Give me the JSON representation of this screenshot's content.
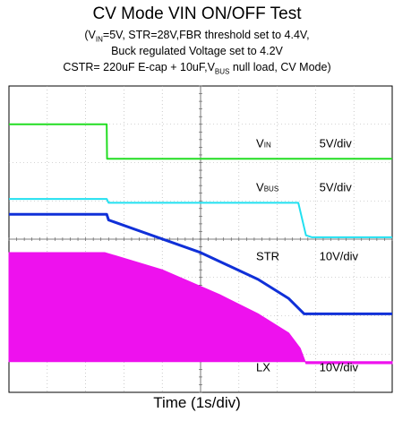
{
  "header": {
    "title": "CV Mode VIN ON/OFF Test",
    "line1_a": "(V",
    "line1_sub": "IN",
    "line1_b": "=5V, STR=28V,FBR threshold set to 4.4V,",
    "line2": "Buck regulated Voltage set to 4.2V",
    "line3_a": "CSTR= 220uF E-cap + 10uF,V",
    "line3_sub": "BUS",
    "line3_b": " null load,  CV Mode)"
  },
  "xlabel": "Time (1s/div)",
  "chart_data": {
    "type": "line",
    "title": "CV Mode VIN ON/OFF Test",
    "xlabel": "Time (1s/div)",
    "x_unit": "s",
    "xlim": [
      0,
      10
    ],
    "y_unit": "div",
    "ylim": [
      -4,
      4
    ],
    "grid": true,
    "series": [
      {
        "name": "VIN",
        "label_main": "V",
        "label_sub": "IN",
        "scale": "5V/div",
        "color": "#22dd22",
        "x": [
          0,
          2.55,
          2.56,
          10
        ],
        "y": [
          3.0,
          3.0,
          2.1,
          2.1
        ]
      },
      {
        "name": "VBUS",
        "label_main": "V",
        "label_sub": "BUS",
        "scale": "5V/div",
        "color": "#22e0f0",
        "x": [
          0,
          2.55,
          2.6,
          7.55,
          7.75,
          7.9,
          10
        ],
        "y": [
          1.05,
          1.05,
          0.95,
          0.95,
          0.1,
          0.05,
          0.05
        ]
      },
      {
        "name": "STR",
        "label_main": "STR",
        "scale": "10V/div",
        "color": "#1030d8",
        "x": [
          0,
          2.55,
          2.6,
          5,
          6.5,
          7.3,
          7.65,
          7.7,
          10
        ],
        "y": [
          0.65,
          0.65,
          0.5,
          -0.35,
          -1.05,
          -1.55,
          -1.9,
          -1.95,
          -1.95
        ]
      },
      {
        "name": "LX",
        "label_main": "LX",
        "scale": "10V/div",
        "color": "#ee11ee",
        "envelope_x": [
          0,
          2.5,
          4,
          5.5,
          6.5,
          7.3,
          7.6,
          7.75,
          10
        ],
        "envelope_top": [
          -0.35,
          -0.35,
          -0.8,
          -1.45,
          -1.95,
          -2.45,
          -2.85,
          -3.25,
          -3.25
        ],
        "envelope_bottom": [
          -3.2,
          -3.2,
          -3.2,
          -3.2,
          -3.2,
          -3.2,
          -3.2,
          -3.2,
          -3.2
        ]
      }
    ]
  }
}
